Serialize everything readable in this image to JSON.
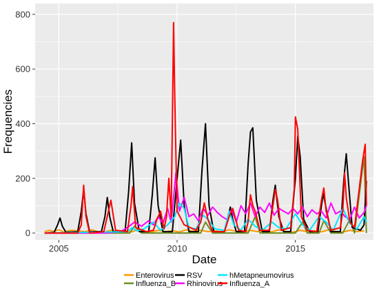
{
  "chart_data": {
    "type": "line",
    "title": "",
    "xlabel": "Date",
    "ylabel": "Frequencies",
    "xlim": [
      2004.0,
      2018.3
    ],
    "ylim": [
      -25,
      840
    ],
    "x_ticks": [
      2005,
      2010,
      2015
    ],
    "x_tick_labels": [
      "2005",
      "2010",
      "2015"
    ],
    "y_ticks": [
      0,
      200,
      400,
      600,
      800
    ],
    "y_tick_labels": [
      "0",
      "200",
      "400",
      "600",
      "800"
    ],
    "grid": true,
    "background": "#EBEBEB",
    "legend_position": "bottom",
    "series": [
      {
        "name": "Enterovirus",
        "color": "#FF9A00",
        "x": [
          2004.4,
          2004.6,
          2004.8,
          2005.0,
          2005.2,
          2005.5,
          2005.8,
          2006.1,
          2006.4,
          2006.6,
          2006.9,
          2007.2,
          2007.5,
          2007.8,
          2008.1,
          2008.3,
          2008.6,
          2008.9,
          2009.2,
          2009.5,
          2009.8,
          2010.1,
          2010.4,
          2010.7,
          2011.0,
          2011.3,
          2011.6,
          2011.9,
          2012.2,
          2012.5,
          2012.8,
          2013.1,
          2013.4,
          2013.7,
          2014.0,
          2014.3,
          2014.6,
          2014.9,
          2015.2,
          2015.5,
          2015.8,
          2016.1,
          2016.4,
          2016.7,
          2017.0,
          2017.3,
          2017.6,
          2017.9
        ],
        "y": [
          5,
          10,
          6,
          12,
          4,
          10,
          8,
          5,
          12,
          6,
          3,
          10,
          5,
          8,
          4,
          12,
          6,
          3,
          10,
          5,
          8,
          4,
          12,
          6,
          10,
          5,
          8,
          4,
          12,
          6,
          3,
          10,
          5,
          8,
          4,
          12,
          6,
          3,
          10,
          5,
          8,
          4,
          12,
          6,
          3,
          10,
          5,
          8
        ]
      },
      {
        "name": "Influenza_B",
        "color": "#6B8E23",
        "x": [
          2004.4,
          2005.0,
          2005.5,
          2006.0,
          2006.5,
          2007.0,
          2007.5,
          2008.0,
          2008.2,
          2008.5,
          2009.0,
          2009.5,
          2010.0,
          2010.5,
          2011.0,
          2011.2,
          2011.5,
          2012.0,
          2012.5,
          2013.0,
          2013.3,
          2013.5,
          2014.0,
          2014.5,
          2015.0,
          2015.3,
          2015.5,
          2016.0,
          2016.2,
          2016.5,
          2017.0,
          2017.3,
          2017.5,
          2017.9,
          2018.0
        ],
        "y": [
          0,
          0,
          0,
          0,
          0,
          0,
          0,
          0,
          25,
          0,
          0,
          0,
          0,
          0,
          0,
          40,
          0,
          0,
          0,
          0,
          60,
          0,
          0,
          0,
          0,
          40,
          0,
          0,
          45,
          0,
          0,
          50,
          0,
          280,
          0
        ]
      },
      {
        "name": "RSV",
        "color": "#000000",
        "x": [
          2004.4,
          2004.8,
          2004.95,
          2005.05,
          2005.15,
          2005.3,
          2005.8,
          2005.95,
          2006.05,
          2006.15,
          2006.3,
          2006.8,
          2006.95,
          2007.05,
          2007.15,
          2007.3,
          2007.8,
          2007.95,
          2008.08,
          2008.2,
          2008.4,
          2008.8,
          2008.95,
          2009.07,
          2009.2,
          2009.4,
          2009.8,
          2010.0,
          2010.15,
          2010.3,
          2010.5,
          2010.9,
          2011.05,
          2011.2,
          2011.35,
          2011.55,
          2012.0,
          2012.15,
          2012.25,
          2012.35,
          2012.5,
          2012.85,
          2013.0,
          2013.1,
          2013.2,
          2013.35,
          2013.6,
          2013.9,
          2014.05,
          2014.15,
          2014.3,
          2014.5,
          2014.8,
          2015.0,
          2015.1,
          2015.2,
          2015.35,
          2015.6,
          2015.95,
          2016.1,
          2016.18,
          2016.3,
          2016.5,
          2016.9,
          2017.05,
          2017.15,
          2017.25,
          2017.4,
          2017.75,
          2017.9,
          2018.0
        ],
        "y": [
          0,
          2,
          30,
          55,
          25,
          3,
          5,
          80,
          160,
          70,
          5,
          5,
          60,
          130,
          60,
          5,
          5,
          150,
          330,
          110,
          5,
          5,
          140,
          275,
          100,
          5,
          5,
          200,
          340,
          100,
          5,
          5,
          230,
          400,
          100,
          5,
          5,
          60,
          95,
          50,
          5,
          5,
          250,
          370,
          385,
          120,
          5,
          5,
          120,
          175,
          60,
          5,
          5,
          200,
          355,
          280,
          50,
          5,
          5,
          100,
          145,
          90,
          5,
          5,
          200,
          290,
          180,
          20,
          10,
          30,
          190
        ]
      },
      {
        "name": "Rhinovirus",
        "color": "#FF00FF",
        "x": [
          2004.4,
          2006.0,
          2007.0,
          2007.6,
          2007.9,
          2008.2,
          2008.5,
          2008.8,
          2009.0,
          2009.2,
          2009.4,
          2009.6,
          2009.75,
          2009.95,
          2010.1,
          2010.3,
          2010.5,
          2010.7,
          2010.9,
          2011.1,
          2011.3,
          2011.5,
          2011.7,
          2011.9,
          2012.1,
          2012.3,
          2012.5,
          2012.7,
          2012.9,
          2013.1,
          2013.3,
          2013.5,
          2013.7,
          2013.9,
          2014.1,
          2014.3,
          2014.5,
          2014.7,
          2014.9,
          2015.1,
          2015.3,
          2015.5,
          2015.7,
          2015.9,
          2016.1,
          2016.3,
          2016.5,
          2016.7,
          2016.9,
          2017.1,
          2017.3,
          2017.5,
          2017.7,
          2017.9,
          2018.0
        ],
        "y": [
          0,
          0,
          0,
          5,
          20,
          40,
          25,
          45,
          30,
          60,
          35,
          90,
          40,
          220,
          80,
          130,
          60,
          70,
          45,
          90,
          65,
          95,
          75,
          60,
          50,
          85,
          40,
          100,
          70,
          110,
          60,
          95,
          75,
          110,
          65,
          90,
          80,
          70,
          90,
          70,
          95,
          60,
          85,
          70,
          80,
          55,
          110,
          70,
          80,
          60,
          50,
          95,
          55,
          75,
          100
        ]
      },
      {
        "name": "hMetapneumovirus",
        "color": "#00E5FF",
        "x": [
          2004.4,
          2007.9,
          2008.1,
          2008.3,
          2008.6,
          2009.0,
          2009.3,
          2009.6,
          2009.9,
          2010.1,
          2010.3,
          2010.5,
          2010.8,
          2011.1,
          2011.3,
          2011.6,
          2012.0,
          2012.2,
          2012.4,
          2012.7,
          2013.0,
          2013.3,
          2013.6,
          2014.0,
          2014.3,
          2014.6,
          2015.0,
          2015.3,
          2015.6,
          2016.0,
          2016.3,
          2016.6,
          2017.0,
          2017.3,
          2017.6,
          2017.9,
          2018.0
        ],
        "y": [
          0,
          5,
          20,
          8,
          15,
          40,
          10,
          30,
          60,
          110,
          90,
          20,
          15,
          65,
          50,
          15,
          10,
          80,
          30,
          10,
          50,
          25,
          10,
          40,
          20,
          15,
          70,
          30,
          10,
          60,
          40,
          10,
          90,
          35,
          15,
          60,
          40
        ]
      },
      {
        "name": "Influenza_A",
        "color": "#FF0000",
        "x": [
          2004.4,
          2005.0,
          2005.8,
          2005.95,
          2006.05,
          2006.15,
          2006.3,
          2006.9,
          2007.1,
          2007.2,
          2007.4,
          2007.9,
          2008.05,
          2008.12,
          2008.25,
          2008.7,
          2009.0,
          2009.15,
          2009.3,
          2009.45,
          2009.55,
          2009.65,
          2009.75,
          2009.8,
          2009.85,
          2009.9,
          2010.0,
          2010.3,
          2010.8,
          2011.0,
          2011.15,
          2011.3,
          2011.5,
          2012.0,
          2012.2,
          2012.35,
          2012.6,
          2012.9,
          2013.0,
          2013.1,
          2013.2,
          2013.3,
          2013.5,
          2013.9,
          2014.05,
          2014.15,
          2014.25,
          2014.4,
          2014.8,
          2014.95,
          2015.0,
          2015.1,
          2015.25,
          2015.5,
          2015.9,
          2016.1,
          2016.2,
          2016.3,
          2016.5,
          2016.9,
          2017.0,
          2017.08,
          2017.15,
          2017.3,
          2017.5,
          2017.85,
          2017.95,
          2018.0
        ],
        "y": [
          0,
          0,
          0,
          30,
          175,
          60,
          0,
          5,
          80,
          120,
          10,
          5,
          100,
          170,
          20,
          5,
          10,
          50,
          80,
          15,
          60,
          200,
          60,
          400,
          770,
          500,
          80,
          30,
          10,
          40,
          110,
          50,
          5,
          5,
          60,
          90,
          10,
          5,
          40,
          140,
          100,
          80,
          10,
          10,
          100,
          160,
          120,
          10,
          20,
          160,
          425,
          380,
          60,
          10,
          5,
          120,
          165,
          80,
          10,
          20,
          80,
          220,
          130,
          40,
          20,
          270,
          325,
          100
        ]
      }
    ],
    "legend": [
      {
        "name": "Enterovirus",
        "color": "#FF9A00"
      },
      {
        "name": "RSV",
        "color": "#000000"
      },
      {
        "name": "hMetapneumovirus",
        "color": "#00E5FF"
      },
      {
        "name": "Influenza_B",
        "color": "#6B8E23"
      },
      {
        "name": "Rhinovirus",
        "color": "#FF00FF"
      },
      {
        "name": "Influenza_A",
        "color": "#FF0000"
      }
    ]
  }
}
